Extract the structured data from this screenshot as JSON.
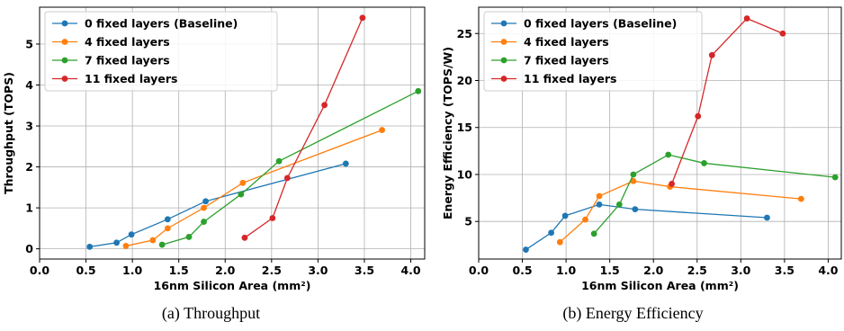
{
  "colors": {
    "baseline": "#1f77b4",
    "four": "#ff7f0e",
    "seven": "#2ca02c",
    "eleven": "#d62728",
    "grid": "#b0b0b0",
    "axis": "#000000"
  },
  "captions": [
    "(a) Throughput",
    "(b) Energy Efficiency"
  ],
  "chart_data": [
    {
      "type": "line",
      "xlabel": "16nm Silicon Area (mm²)",
      "ylabel": "Throughput (TOPS)",
      "xlim": [
        0.0,
        4.15
      ],
      "ylim": [
        -0.25,
        5.9
      ],
      "xticks": [
        "0.0",
        "0.5",
        "1.0",
        "1.5",
        "2.0",
        "2.5",
        "3.0",
        "3.5",
        "4.0"
      ],
      "yticks": [
        "0",
        "1",
        "2",
        "3",
        "4",
        "5"
      ],
      "grid": true,
      "legend_position": "top-left",
      "series": [
        {
          "name": "0 fixed layers (Baseline)",
          "color": "#1f77b4",
          "points": [
            [
              0.54,
              0.05
            ],
            [
              0.83,
              0.15
            ],
            [
              0.99,
              0.35
            ],
            [
              1.38,
              0.72
            ],
            [
              1.79,
              1.16
            ],
            [
              3.3,
              2.08
            ]
          ]
        },
        {
          "name": "4 fixed layers",
          "color": "#ff7f0e",
          "points": [
            [
              0.93,
              0.07
            ],
            [
              1.22,
              0.21
            ],
            [
              1.38,
              0.5
            ],
            [
              1.77,
              1.0
            ],
            [
              2.19,
              1.61
            ],
            [
              3.69,
              2.9
            ]
          ]
        },
        {
          "name": "7 fixed layers",
          "color": "#2ca02c",
          "points": [
            [
              1.32,
              0.1
            ],
            [
              1.61,
              0.29
            ],
            [
              1.77,
              0.66
            ],
            [
              2.17,
              1.33
            ],
            [
              2.58,
              2.14
            ],
            [
              4.08,
              3.85
            ]
          ]
        },
        {
          "name": "11 fixed layers",
          "color": "#d62728",
          "points": [
            [
              2.21,
              0.27
            ],
            [
              2.51,
              0.75
            ],
            [
              2.67,
              1.73
            ],
            [
              3.07,
              3.51
            ],
            [
              3.48,
              5.64
            ]
          ]
        }
      ]
    },
    {
      "type": "line",
      "xlabel": "16nm Silicon Area (mm²)",
      "ylabel": "Energy Efficiency (TOPS/W)",
      "xlim": [
        0.0,
        4.15
      ],
      "ylim": [
        1.0,
        27.8
      ],
      "xticks": [
        "0.0",
        "0.5",
        "1.0",
        "1.5",
        "2.0",
        "2.5",
        "3.0",
        "3.5",
        "4.0"
      ],
      "yticks": [
        "5",
        "10",
        "15",
        "20",
        "25"
      ],
      "grid": true,
      "legend_position": "top-left",
      "series": [
        {
          "name": "0 fixed layers (Baseline)",
          "color": "#1f77b4",
          "points": [
            [
              0.54,
              2.0
            ],
            [
              0.83,
              3.8
            ],
            [
              0.99,
              5.6
            ],
            [
              1.38,
              6.8
            ],
            [
              1.79,
              6.3
            ],
            [
              3.3,
              5.4
            ]
          ]
        },
        {
          "name": "4 fixed layers",
          "color": "#ff7f0e",
          "points": [
            [
              0.93,
              2.8
            ],
            [
              1.22,
              5.2
            ],
            [
              1.38,
              7.7
            ],
            [
              1.77,
              9.3
            ],
            [
              2.19,
              8.7
            ],
            [
              3.69,
              7.4
            ]
          ]
        },
        {
          "name": "7 fixed layers",
          "color": "#2ca02c",
          "points": [
            [
              1.32,
              3.7
            ],
            [
              1.61,
              6.8
            ],
            [
              1.77,
              10.0
            ],
            [
              2.17,
              12.1
            ],
            [
              2.58,
              11.2
            ],
            [
              4.08,
              9.7
            ]
          ]
        },
        {
          "name": "11 fixed layers",
          "color": "#d62728",
          "points": [
            [
              2.21,
              9.0
            ],
            [
              2.51,
              16.2
            ],
            [
              2.67,
              22.7
            ],
            [
              3.07,
              26.6
            ],
            [
              3.48,
              25.0
            ]
          ]
        }
      ]
    }
  ]
}
